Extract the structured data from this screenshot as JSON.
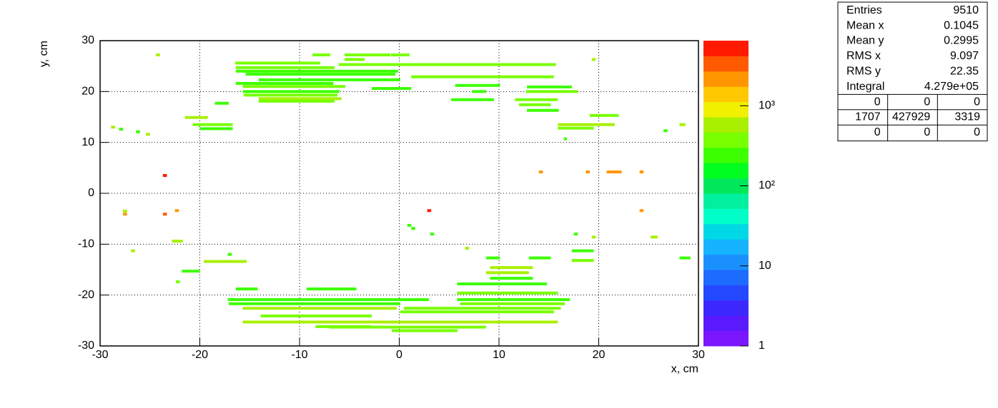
{
  "chart_data": {
    "type": "heatmap",
    "x_label": "x, cm",
    "y_label": "y, cm",
    "xlim": [
      -30,
      30
    ],
    "xticks": [
      -30,
      -20,
      -10,
      0,
      10,
      20,
      30
    ],
    "ylim": [
      -30,
      30
    ],
    "yticks": [
      -30,
      -20,
      -10,
      0,
      10,
      20,
      30
    ],
    "grid": true,
    "zlog": true,
    "zlim": [
      1,
      6500
    ],
    "zticks": [
      1,
      10,
      {
        "value": 100,
        "label": "10²"
      },
      {
        "value": 1000,
        "label": "10³"
      }
    ],
    "palette": [
      "#7a17ff",
      "#5a1aff",
      "#3c28ff",
      "#2448ff",
      "#1e6cff",
      "#1a90ff",
      "#16b4ff",
      "#00d8e6",
      "#00ffc8",
      "#00f0a0",
      "#00e85a",
      "#00ff20",
      "#3cff00",
      "#78ff00",
      "#a8f000",
      "#f0f000",
      "#ffc800",
      "#ff9600",
      "#ff5a00",
      "#ff1a00"
    ],
    "cells": {
      "x0": [
        -8.71,
        -5.49,
        -0.83,
        -24.4,
        -5.49,
        19.3,
        -16.45,
        -6.06,
        -16.4,
        -16.4,
        -15.4,
        1.2,
        -14.1,
        -16.4,
        -15.7,
        -2.76,
        -15.7,
        -15.6,
        -14.1,
        -14.1,
        5.6,
        12.8,
        7.3,
        12.7,
        5.2,
        11.6,
        12.0,
        12.8,
        19.1,
        15.9,
        15.9,
        16.5,
        -21.5,
        -20.7,
        -20.0,
        -18.5,
        -28.9,
        -28.1,
        -26.4,
        -25.4,
        26.5,
        28.1,
        -23.7,
        14.0,
        18.7,
        20.8,
        24.1,
        -23.7,
        -22.5,
        2.8,
        24.1,
        -27.7,
        -27.7,
        0.8,
        1.2,
        3.1,
        17.5,
        19.3,
        25.2,
        -22.8,
        6.6,
        17.3,
        -26.9,
        -17.2,
        8.7,
        13.0,
        17.3,
        28.1,
        -19.6,
        -21.8,
        9.1,
        -22.4,
        8.7,
        9.1,
        5.8,
        -16.4,
        -9.3,
        5.8,
        -17.2,
        5.8,
        -17.1,
        6.1,
        -15.7,
        0.47,
        0.1,
        -13.9,
        -15.7,
        -8.4,
        -7.0,
        -0.75
      ],
      "x1": [
        -6.92,
        -0.9,
        1.04,
        -24.0,
        -3.48,
        19.7,
        -7.92,
        15.7,
        -6.5,
        -0.1,
        -0.4,
        15.5,
        0.1,
        -6.6,
        -5.4,
        1.2,
        -6.0,
        -6.2,
        -5.8,
        -6.5,
        10.1,
        17.3,
        8.7,
        17.9,
        9.5,
        15.9,
        15.2,
        16.0,
        22.0,
        21.6,
        19.5,
        16.8,
        -19.2,
        -16.7,
        -16.7,
        -17.1,
        -28.5,
        -27.7,
        -26.0,
        -25.0,
        26.9,
        28.7,
        -23.3,
        14.4,
        19.1,
        22.3,
        24.5,
        -23.3,
        -22.1,
        3.2,
        24.5,
        -27.3,
        -27.3,
        1.2,
        1.6,
        3.5,
        17.9,
        19.7,
        25.9,
        -21.7,
        7.0,
        19.5,
        -26.5,
        -16.8,
        10.1,
        15.2,
        19.5,
        29.2,
        -15.3,
        -20.0,
        13.4,
        -22.0,
        13.0,
        13.4,
        14.8,
        -14.2,
        -4.3,
        15.9,
        2.97,
        17.1,
        0.1,
        16.6,
        -0.25,
        16.2,
        15.5,
        -2.76,
        15.9,
        -2.8,
        8.7,
        5.84
      ],
      "y": [
        27.2,
        27.2,
        27.2,
        27.2,
        26.3,
        26.3,
        25.6,
        25.3,
        24.7,
        24.0,
        23.4,
        22.9,
        22.3,
        21.6,
        21.0,
        20.6,
        20.0,
        19.3,
        18.6,
        18.1,
        21.2,
        20.9,
        20.0,
        20.0,
        18.4,
        18.4,
        17.4,
        16.3,
        15.3,
        13.5,
        12.8,
        10.7,
        14.9,
        13.5,
        12.7,
        17.7,
        13.0,
        12.6,
        12.1,
        11.6,
        12.3,
        13.5,
        3.5,
        4.2,
        4.2,
        4.2,
        4.2,
        -4.1,
        -3.4,
        -3.4,
        -3.4,
        -3.5,
        -4.1,
        -6.3,
        -6.9,
        -8.0,
        -8.0,
        -8.6,
        -8.6,
        -9.4,
        -10.8,
        -11.3,
        -11.3,
        -12.0,
        -12.7,
        -12.7,
        -13.2,
        -12.7,
        -13.4,
        -15.3,
        -14.6,
        -17.4,
        -15.6,
        -16.7,
        -17.8,
        -18.8,
        -18.8,
        -19.6,
        -20.9,
        -20.9,
        -21.7,
        -21.7,
        -22.6,
        -22.6,
        -23.3,
        -24.1,
        -25.3,
        -26.2,
        -26.3,
        -27.0
      ],
      "values": [
        400,
        400,
        400,
        700,
        400,
        500,
        400,
        400,
        400,
        300,
        250,
        400,
        250,
        300,
        400,
        300,
        250,
        400,
        600,
        400,
        250,
        300,
        250,
        400,
        300,
        400,
        400,
        300,
        400,
        700,
        400,
        250,
        600,
        400,
        300,
        300,
        600,
        300,
        300,
        700,
        300,
        700,
        4500,
        2500,
        2500,
        2500,
        2500,
        4000,
        2500,
        4500,
        2500,
        700,
        2000,
        250,
        250,
        250,
        250,
        700,
        700,
        700,
        700,
        300,
        700,
        300,
        300,
        300,
        400,
        300,
        600,
        250,
        700,
        400,
        600,
        300,
        300,
        300,
        300,
        400,
        300,
        300,
        300,
        400,
        600,
        400,
        400,
        400,
        500,
        400,
        400,
        400
      ]
    }
  },
  "stats": {
    "rows": [
      [
        "Entries",
        "9510"
      ],
      [
        "Mean x",
        "0.1045"
      ],
      [
        "Mean y",
        "0.2995"
      ],
      [
        "RMS x",
        "9.097"
      ],
      [
        "RMS y",
        "22.35"
      ],
      [
        "Integral",
        "4.279e+05"
      ]
    ],
    "grid": [
      [
        "0",
        "0",
        "0"
      ],
      [
        "1707",
        "427929",
        "3319"
      ],
      [
        "0",
        "0",
        "0"
      ]
    ]
  }
}
